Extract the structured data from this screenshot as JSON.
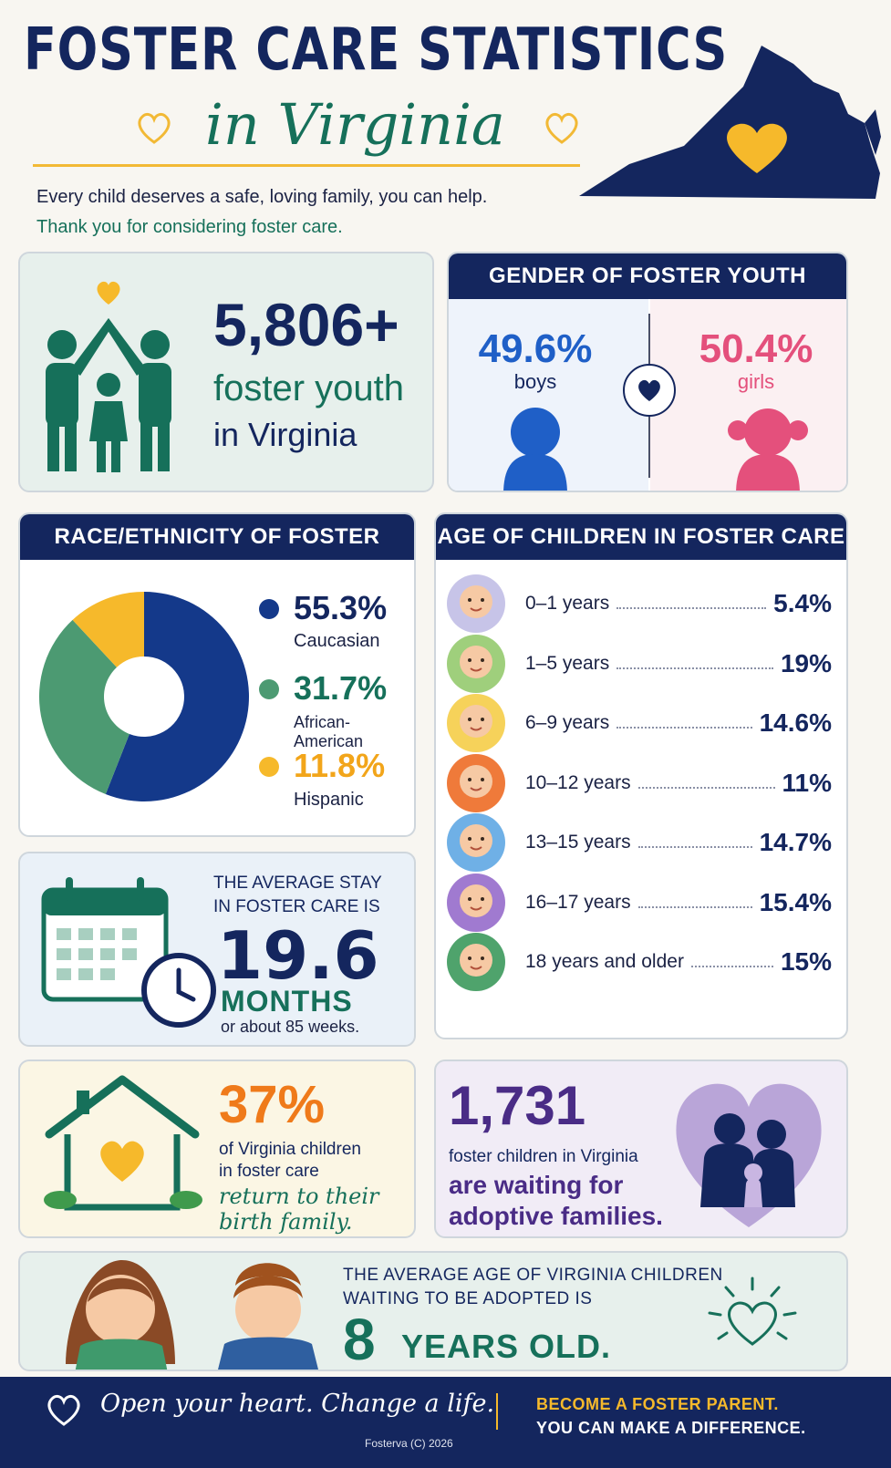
{
  "title": {
    "main": "FOSTER CARE STATISTICS",
    "sub": "in Virginia"
  },
  "intro": {
    "line1": "Every child deserves a safe, loving family, you can help.",
    "line2": "Thank you for considering foster care."
  },
  "youth_count": {
    "value": "5,806+",
    "line1": "foster youth",
    "line2": "in Virginia"
  },
  "gender": {
    "heading": "GENDER OF FOSTER YOUTH",
    "boys": {
      "value": "49.6%",
      "label": "boys"
    },
    "girls": {
      "value": "50.4%",
      "label": "girls"
    }
  },
  "race": {
    "heading": "RACE/ETHNICITY OF FOSTER YOUTH",
    "items": [
      {
        "value": "55.3%",
        "label": "Caucasian"
      },
      {
        "value": "31.7%",
        "label": "African-American"
      },
      {
        "value": "11.8%",
        "label": "Hispanic"
      }
    ]
  },
  "age": {
    "heading": "AGE OF CHILDREN IN FOSTER CARE",
    "rows": [
      {
        "label": "0–1 years",
        "value": "5.4%"
      },
      {
        "label": "1–5 years",
        "value": "19%"
      },
      {
        "label": "6–9 years",
        "value": "14.6%"
      },
      {
        "label": "10–12 years",
        "value": "11%"
      },
      {
        "label": "13–15 years",
        "value": "14.7%"
      },
      {
        "label": "16–17 years",
        "value": "15.4%"
      },
      {
        "label": "18 years and older",
        "value": "15%"
      }
    ]
  },
  "stay": {
    "line1": "THE AVERAGE STAY",
    "line2": "IN FOSTER CARE IS",
    "value": "19.6",
    "unit": "MONTHS",
    "note": "or about 85 weeks."
  },
  "return": {
    "value": "37%",
    "line1": "of Virginia children",
    "line2": "in foster care",
    "line3": "return to their",
    "line4": "birth family."
  },
  "waiting": {
    "value": "1,731",
    "line1": "foster children in Virginia",
    "line2": "are waiting for",
    "line3": "adoptive families."
  },
  "avg_age": {
    "line1": "THE AVERAGE AGE OF VIRGINIA CHILDREN",
    "line2": "WAITING TO BE ADOPTED IS",
    "value": "8",
    "unit": "YEARS OLD."
  },
  "footer": {
    "slogan": "Open your heart. Change a life.",
    "credit": "Fosterva (C) 2026",
    "cta1": "BECOME A FOSTER PARENT.",
    "cta2": "YOU CAN MAKE A DIFFERENCE."
  },
  "colors": {
    "navy": "#14265e",
    "green": "#16705a",
    "yellow": "#f6b92b",
    "blue": "#1f5fc7",
    "pink": "#e4507c",
    "orange": "#ef7a1a",
    "purple": "#4a2c86"
  },
  "chart_data": [
    {
      "type": "pie",
      "title": "RACE/ETHNICITY OF FOSTER YOUTH",
      "categories": [
        "Caucasian",
        "African-American",
        "Hispanic"
      ],
      "values": [
        55.3,
        31.7,
        11.8
      ],
      "colors": [
        "#14398a",
        "#4c9a72",
        "#f6b92b"
      ]
    },
    {
      "type": "bar",
      "title": "AGE OF CHILDREN IN FOSTER CARE",
      "categories": [
        "0–1 years",
        "1–5 years",
        "6–9 years",
        "10–12 years",
        "13–15 years",
        "16–17 years",
        "18 years and older"
      ],
      "values": [
        5.4,
        19,
        14.6,
        11,
        14.7,
        15.4,
        15
      ]
    },
    {
      "type": "pie",
      "title": "GENDER OF FOSTER YOUTH",
      "categories": [
        "boys",
        "girls"
      ],
      "values": [
        49.6,
        50.4
      ]
    }
  ]
}
